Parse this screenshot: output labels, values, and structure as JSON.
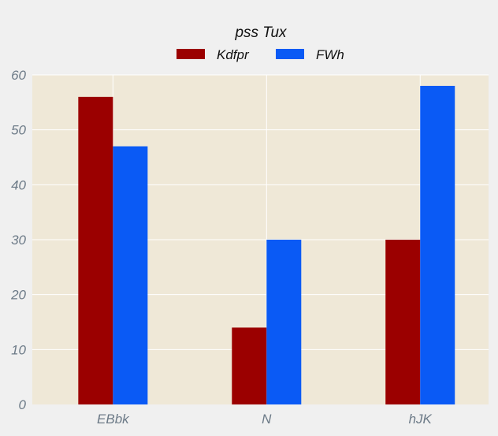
{
  "chart_data": {
    "type": "bar",
    "title": "pss Tux",
    "xlabel": "",
    "ylabel": "",
    "categories": [
      "EBbk",
      "N",
      "hJK"
    ],
    "series": [
      {
        "name": "Kdfpr",
        "values": [
          56,
          14,
          30
        ],
        "color": "#9b0000"
      },
      {
        "name": "FWh",
        "values": [
          47,
          30,
          58
        ],
        "color": "#0a5af5"
      }
    ],
    "ylim": [
      0,
      60
    ],
    "yticks": [
      0,
      10,
      20,
      30,
      40,
      50,
      60
    ],
    "grid": true,
    "legend_position": "top-center",
    "plot_background": "#efe8d7",
    "grid_color": "#ffffff"
  }
}
